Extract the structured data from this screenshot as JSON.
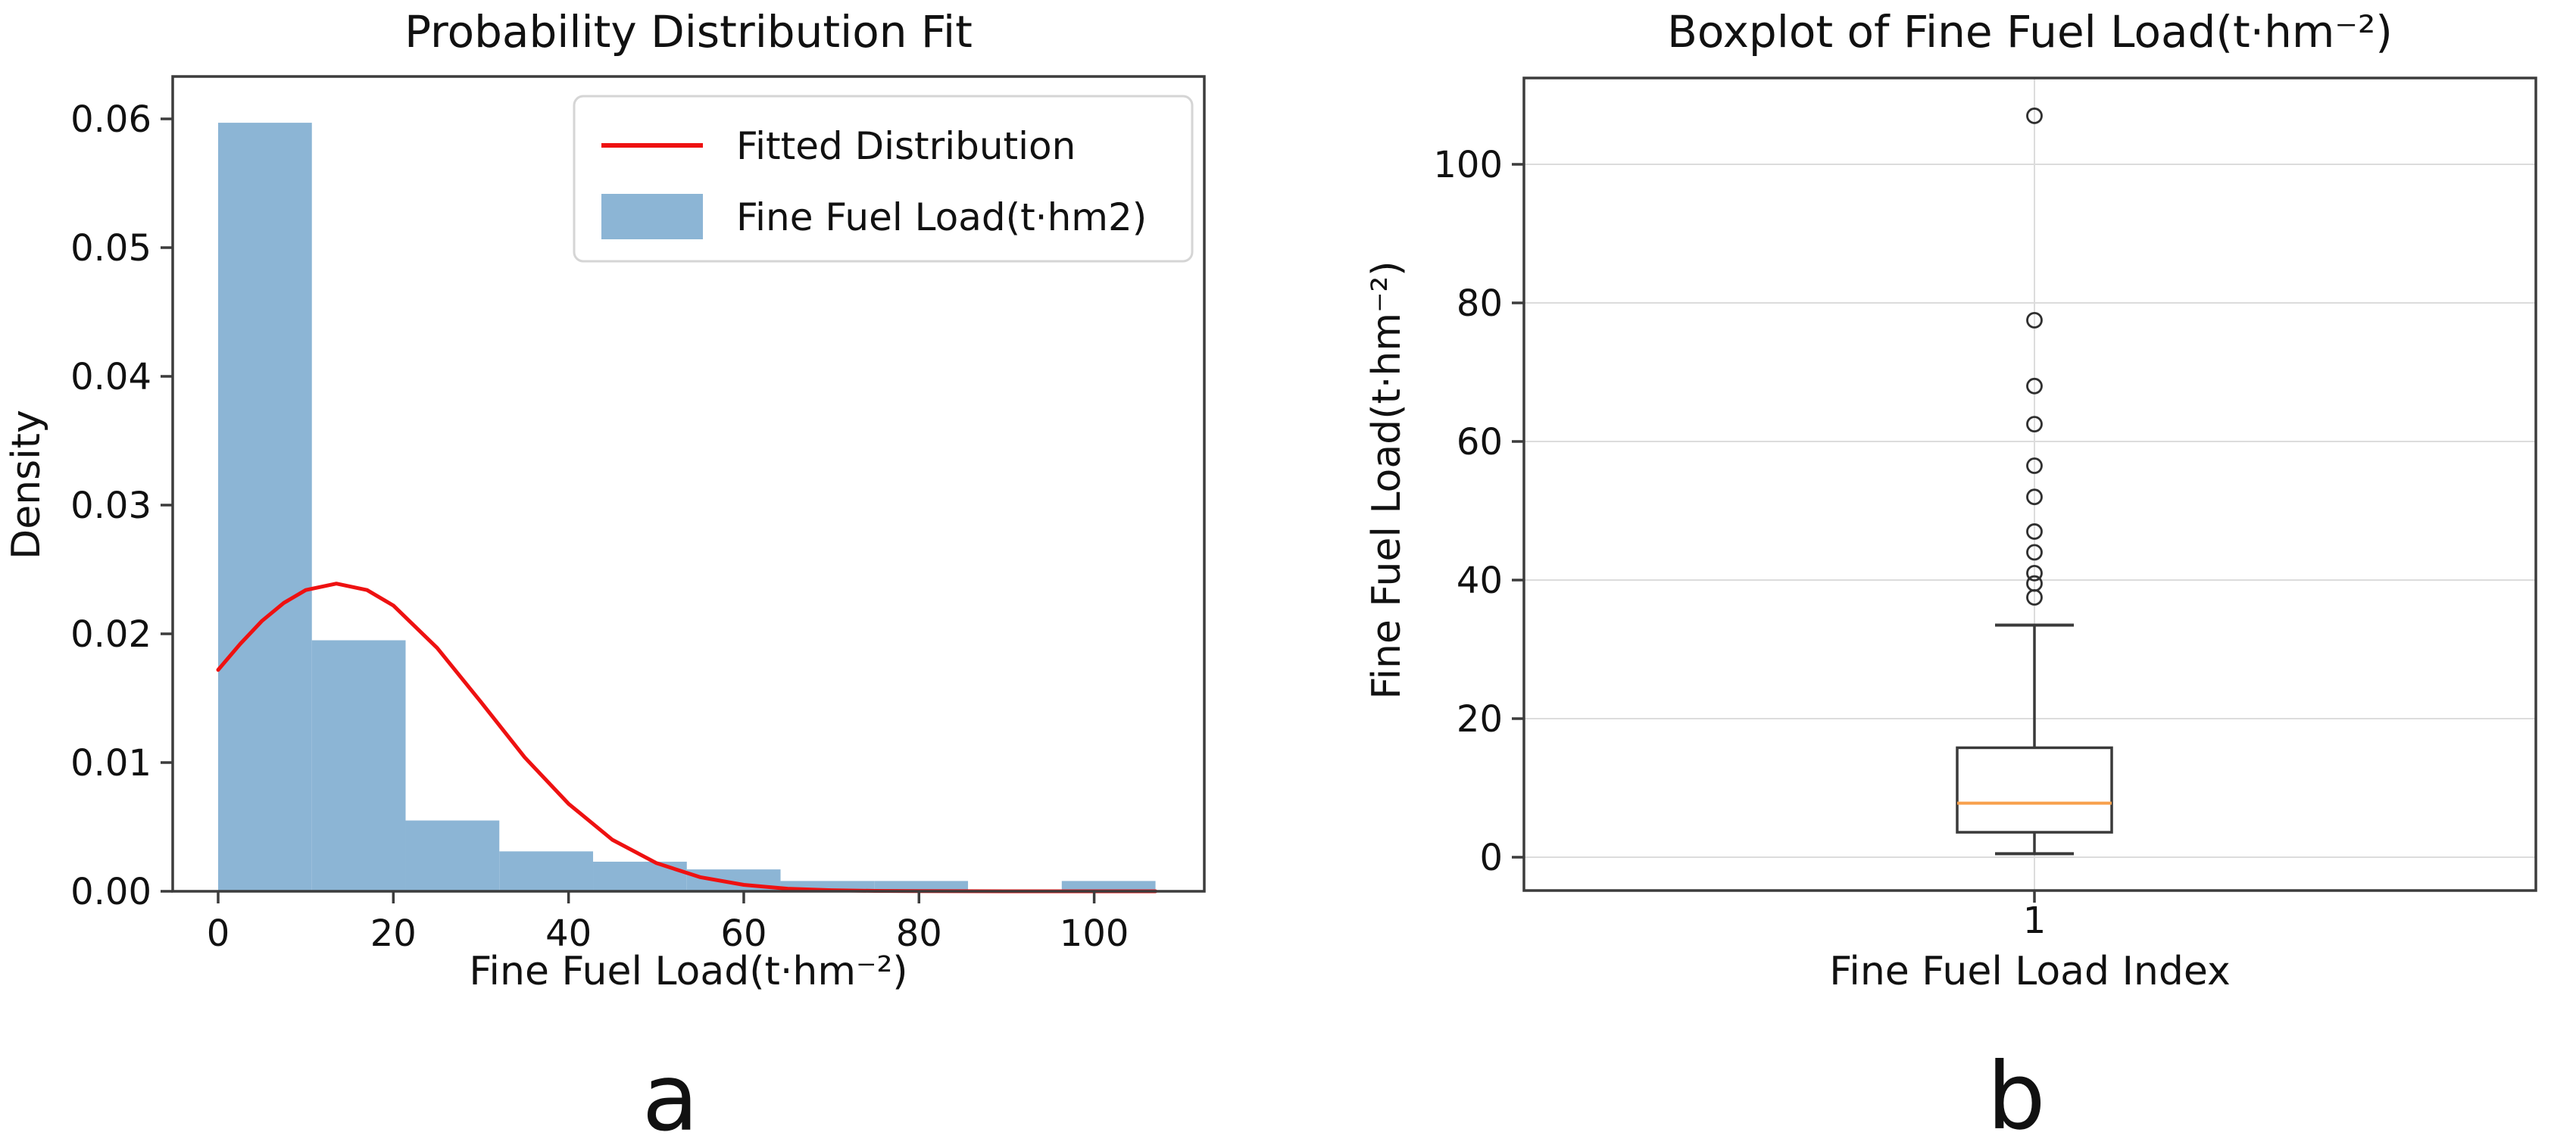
{
  "captions": {
    "a": "a",
    "b": "b"
  },
  "style": {
    "spine_color": "#3c3c3c",
    "tick_color": "#3c3c3c",
    "grid_color": "#dcdcdc",
    "text_color": "#111111",
    "background": "#ffffff"
  },
  "chart_data": [
    {
      "type": "histogram",
      "title": "Probability Distribution Fit",
      "xlabel": "Fine Fuel Load(t·hm⁻²)",
      "ylabel": "Density",
      "xlim": [
        -5.2,
        112.6
      ],
      "ylim": [
        0,
        0.0633
      ],
      "grid": false,
      "x_ticks": [
        {
          "value": 0,
          "label": "0"
        },
        {
          "value": 20,
          "label": "20"
        },
        {
          "value": 40,
          "label": "40"
        },
        {
          "value": 60,
          "label": "60"
        },
        {
          "value": 80,
          "label": "80"
        },
        {
          "value": 100,
          "label": "100"
        }
      ],
      "y_ticks": [
        {
          "value": 0.0,
          "label": "0.00"
        },
        {
          "value": 0.01,
          "label": "0.01"
        },
        {
          "value": 0.02,
          "label": "0.02"
        },
        {
          "value": 0.03,
          "label": "0.03"
        },
        {
          "value": 0.04,
          "label": "0.04"
        },
        {
          "value": 0.05,
          "label": "0.05"
        },
        {
          "value": 0.06,
          "label": "0.06"
        }
      ],
      "bar_color": "#8cb5d5",
      "bin_edges": [
        0,
        10.7,
        21.4,
        32.1,
        42.8,
        53.5,
        64.2,
        74.9,
        85.6,
        96.3,
        107
      ],
      "bin_heights": [
        0.0597,
        0.0195,
        0.0055,
        0.0031,
        0.0023,
        0.0017,
        0.0008,
        0.0008,
        0,
        0.0008
      ],
      "curve": {
        "name": "Fitted Distribution",
        "color": "#ee1111",
        "x": [
          0,
          2.5,
          5,
          7.5,
          10,
          13.5,
          17,
          20,
          25,
          30,
          35,
          40,
          45,
          50,
          55,
          60,
          65,
          70,
          75,
          80,
          90,
          100,
          107
        ],
        "y": [
          0.0172,
          0.0192,
          0.021,
          0.0224,
          0.0234,
          0.0239,
          0.0234,
          0.0222,
          0.0189,
          0.0147,
          0.0104,
          0.0068,
          0.004,
          0.0022,
          0.0011,
          0.0005,
          0.0002,
          8e-05,
          3e-05,
          1e-05,
          0,
          0,
          0
        ]
      },
      "legend": {
        "items": [
          {
            "label": "Fitted Distribution",
            "marker": "line",
            "color": "#ee1111"
          },
          {
            "label": "Fine Fuel Load(t·hm2)",
            "marker": "patch",
            "color": "#8cb5d5"
          }
        ]
      }
    },
    {
      "type": "box",
      "title": "Boxplot of Fine Fuel Load(t·hm⁻²)",
      "xlabel": "Fine Fuel Load Index",
      "ylabel": "Fine Fuel Load(t·hm⁻²)",
      "x_tick_label": "1",
      "ylim": [
        -4.8,
        112.5
      ],
      "grid": true,
      "y_ticks": [
        {
          "value": 0,
          "label": "0"
        },
        {
          "value": 20,
          "label": "20"
        },
        {
          "value": 40,
          "label": "40"
        },
        {
          "value": 60,
          "label": "60"
        },
        {
          "value": 80,
          "label": "80"
        },
        {
          "value": 100,
          "label": "100"
        }
      ],
      "stats": {
        "whisker_low": 0.5,
        "q1": 3.6,
        "median": 7.8,
        "q3": 15.8,
        "whisker_high": 33.5
      },
      "outliers": [
        37.5,
        39.5,
        41,
        44,
        47,
        52,
        56.5,
        62.5,
        68,
        77.5,
        107
      ],
      "box_color": "#3a3a3a",
      "median_color": "#f8a04c"
    }
  ]
}
